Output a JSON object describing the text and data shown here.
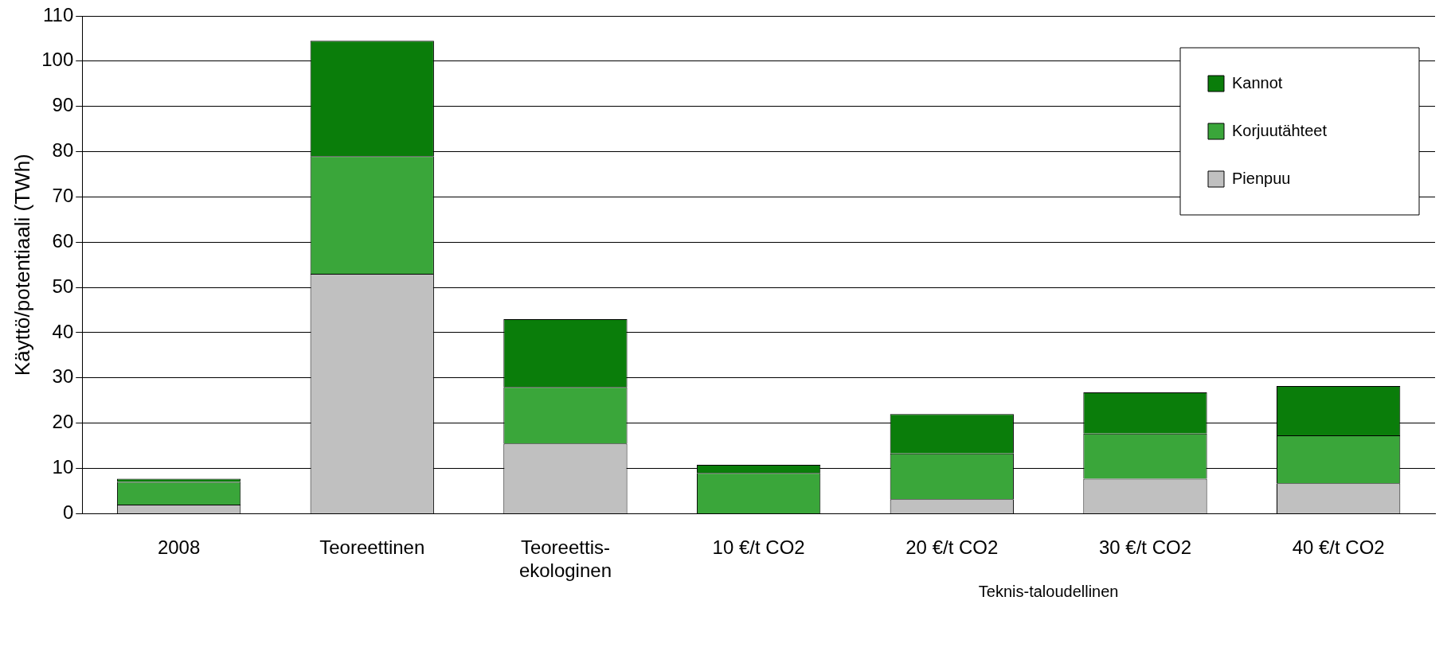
{
  "chart_data": {
    "type": "bar",
    "stacked": true,
    "ylabel": "Käyttö/potentiaali (TWh)",
    "categories": [
      "2008",
      "Teoreettinen",
      "Teoreettis-ekologinen",
      "10 €/t CO2",
      "20 €/t CO2",
      "30 €/t CO2",
      "40 €/t CO2"
    ],
    "series": [
      {
        "name": "Pienpuu",
        "color": "#c0c0c0",
        "values": [
          2,
          53,
          15.5,
          0,
          3.2,
          7.7,
          6.7
        ]
      },
      {
        "name": "Korjuutähteet",
        "color": "#3aa63a",
        "values": [
          5,
          26,
          12.5,
          9,
          10.1,
          10,
          10.6
        ]
      },
      {
        "name": "Kannot",
        "color": "#0a7d0a",
        "values": [
          0.7,
          25.5,
          15,
          1.8,
          8.7,
          9.1,
          10.9
        ]
      }
    ],
    "ylim": [
      0,
      110
    ],
    "yticks": [
      0,
      10,
      20,
      30,
      40,
      50,
      60,
      70,
      80,
      90,
      100,
      110
    ],
    "grid": "y",
    "legend": "top right",
    "annotations": [
      "Teknis-taloudellinen"
    ]
  }
}
